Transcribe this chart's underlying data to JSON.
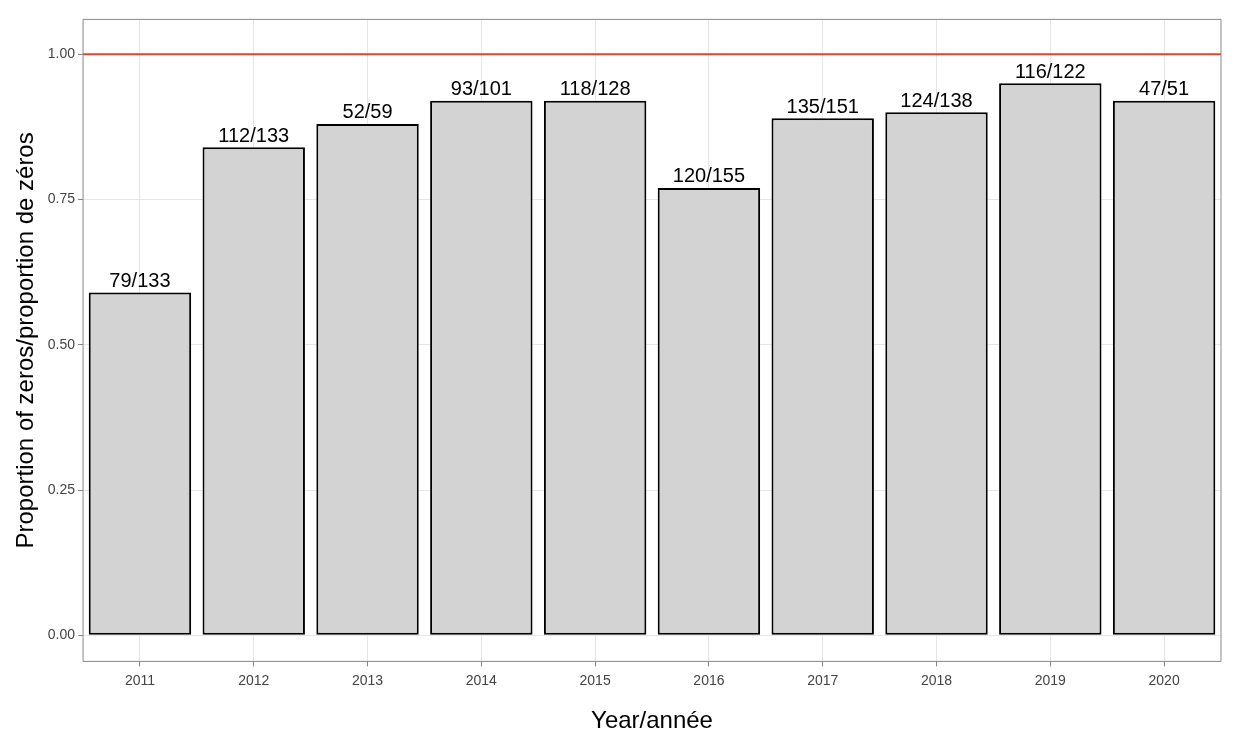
{
  "chart_data": {
    "type": "bar",
    "xlabel": "Year/année",
    "ylabel": "Proportion of zeros/proportion de zéros",
    "categories": [
      "2011",
      "2012",
      "2013",
      "2014",
      "2015",
      "2016",
      "2017",
      "2018",
      "2019",
      "2020"
    ],
    "values": [
      0.59,
      0.84,
      0.88,
      0.92,
      0.92,
      0.77,
      0.89,
      0.9,
      0.95,
      0.92
    ],
    "value_labels": [
      "79/133",
      "112/133",
      "52/59",
      "93/101",
      "118/128",
      "120/155",
      "135/151",
      "124/138",
      "116/122",
      "47/51"
    ],
    "color": "#d3d3d3",
    "ylim": [
      -0.045,
      1.06
    ],
    "yticks": [
      {
        "value": 0,
        "label": "0.00"
      },
      {
        "value": 0.25,
        "label": "0.25"
      },
      {
        "value": 0.5,
        "label": "0.50"
      },
      {
        "value": 0.75,
        "label": "0.75"
      },
      {
        "value": 1,
        "label": "1.00"
      }
    ],
    "ref_lines": [
      {
        "axis": "y",
        "value": 1,
        "color": "#e8412c"
      }
    ],
    "grid": true
  }
}
